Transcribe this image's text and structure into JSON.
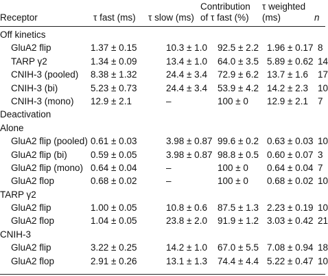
{
  "header": {
    "receptor": "Receptor",
    "tau_fast": "τ fast (ms)",
    "tau_slow": "τ slow (ms)",
    "contribution_line1": "Contribution",
    "contribution_line2": "of τ fast (%)",
    "tau_weighted_line1": "τ weighted",
    "tau_weighted_line2": "(ms)",
    "n": "n"
  },
  "rows": [
    {
      "type": "section",
      "label": "Off kinetics"
    },
    {
      "type": "data",
      "label": "GluA2 flip",
      "fast": "1.37 ± 0.15",
      "slow": "10.3 ± 1.0",
      "contrib": "92.5 ± 2.2",
      "weighted": "1.96 ± 0.17",
      "n": "8"
    },
    {
      "type": "data",
      "label": "TARP γ2",
      "fast": "1.34 ± 0.09",
      "slow": "13.4 ± 1.0",
      "contrib": "64.0 ± 3.5",
      "weighted": "5.89 ± 0.62",
      "n": "14"
    },
    {
      "type": "data",
      "label": "CNIH-3 (pooled)",
      "fast": "8.38 ± 1.32",
      "slow": "24.4 ± 3.4",
      "contrib": "72.9 ± 6.2",
      "weighted": "13.7 ± 1.6",
      "n": "17"
    },
    {
      "type": "data",
      "label": "CNIH-3 (bi)",
      "fast": "5.23 ± 0.73",
      "slow": "24.4 ± 3.4",
      "contrib": "53.9 ± 4.2",
      "weighted": "14.2 ± 2.3",
      "n": "10"
    },
    {
      "type": "data",
      "label": "CNIH-3 (mono)",
      "fast": "12.9 ± 2.1",
      "slow": "–",
      "contrib": "100 ± 0",
      "weighted": "12.9 ± 2.1",
      "n": "7"
    },
    {
      "type": "section",
      "label": "Deactivation"
    },
    {
      "type": "section",
      "label": "Alone"
    },
    {
      "type": "data",
      "label": "GluA2 flip (pooled)",
      "fast": "0.61 ± 0.03",
      "slow": "3.98 ± 0.87",
      "contrib": "99.6 ± 0.2",
      "weighted": "0.63 ± 0.03",
      "n": "10"
    },
    {
      "type": "data",
      "label": "GluA2 flip (bi)",
      "fast": "0.59 ± 0.05",
      "slow": "3.98 ± 0.87",
      "contrib": "98.8 ± 0.5",
      "weighted": "0.60 ± 0.07",
      "n": "3"
    },
    {
      "type": "data",
      "label": "GluA2 flip (mono)",
      "fast": "0.64 ± 0.04",
      "slow": "–",
      "contrib": "100 ± 0",
      "weighted": "0.64 ± 0.04",
      "n": "7"
    },
    {
      "type": "data",
      "label": "GluA2 flop",
      "fast": "0.68 ± 0.02",
      "slow": "–",
      "contrib": "100 ± 0",
      "weighted": "0.68 ± 0.02",
      "n": "10"
    },
    {
      "type": "section",
      "label": "TARP γ2"
    },
    {
      "type": "data",
      "label": "GluA2 flip",
      "fast": "1.00 ± 0.05",
      "slow": "10.8 ± 0.6",
      "contrib": "87.5 ± 1.3",
      "weighted": "2.23 ± 0.19",
      "n": "10"
    },
    {
      "type": "data",
      "label": "GluA2 flop",
      "fast": "1.04 ± 0.05",
      "slow": "23.8 ± 2.0",
      "contrib": "91.9 ± 1.2",
      "weighted": "3.03 ± 0.42",
      "n": "21"
    },
    {
      "type": "section",
      "label": "CNIH-3"
    },
    {
      "type": "data",
      "label": "GluA2 flip",
      "fast": "3.22 ± 0.25",
      "slow": "14.2 ± 1.0",
      "contrib": "67.0 ± 5.5",
      "weighted": "7.08 ± 0.94",
      "n": "18"
    },
    {
      "type": "data",
      "label": "GluA2 flop",
      "fast": "2.91 ± 0.26",
      "slow": "13.1 ± 1.3",
      "contrib": "74.4 ± 4.4",
      "weighted": "5.22 ± 0.47",
      "n": "10"
    }
  ]
}
